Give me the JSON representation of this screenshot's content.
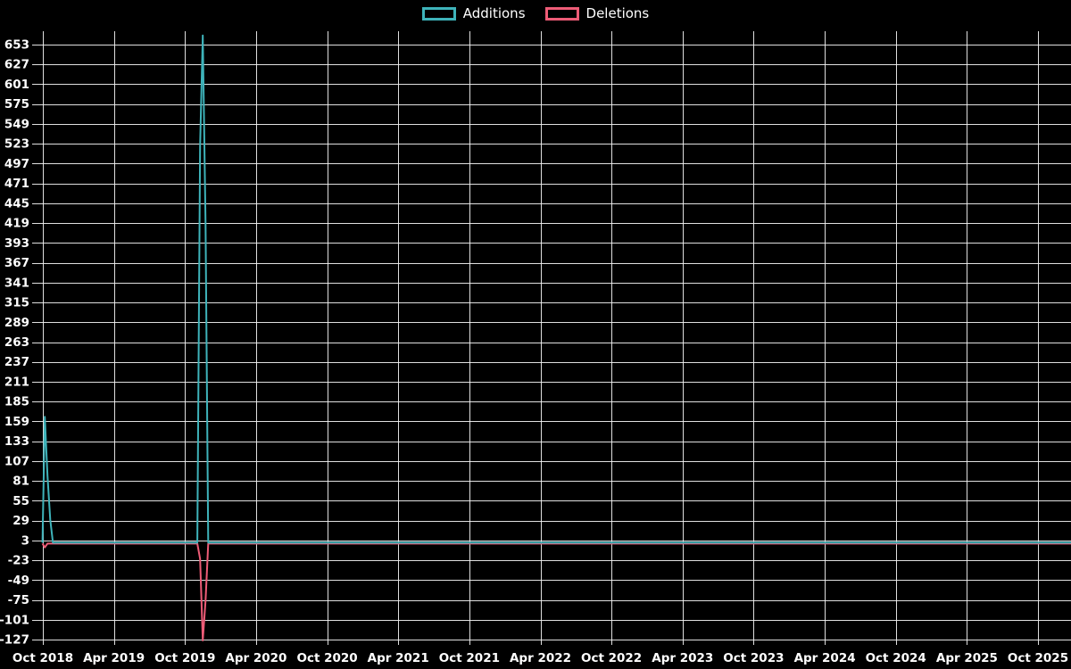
{
  "legend": {
    "additions_label": "Additions",
    "deletions_label": "Deletions"
  },
  "colors": {
    "background": "#000000",
    "grid": "#f2f2f2",
    "text": "#ffffff",
    "additions": "#3eb3ba",
    "deletions": "#ee5c77"
  },
  "chart_data": {
    "type": "line",
    "title": "",
    "legend": [
      "Additions",
      "Deletions"
    ],
    "legend_position": "top-center",
    "grid": true,
    "background": "#000000",
    "xlabel": "",
    "ylabel": "",
    "ylim": [
      -127,
      670
    ],
    "y_tick_step": 26,
    "y_ticks": [
      653,
      627,
      601,
      575,
      549,
      523,
      497,
      471,
      445,
      419,
      393,
      367,
      341,
      315,
      289,
      263,
      237,
      211,
      185,
      159,
      133,
      107,
      81,
      55,
      29,
      3,
      -23,
      -49,
      -75,
      -101,
      -127
    ],
    "x_ticks": [
      "Oct 2018",
      "Apr 2019",
      "Oct 2019",
      "Apr 2020",
      "Oct 2020",
      "Apr 2021",
      "Oct 2021",
      "Apr 2022",
      "Oct 2022",
      "Apr 2023",
      "Oct 2023",
      "Apr 2024",
      "Oct 2024",
      "Apr 2025",
      "Oct 2025"
    ],
    "x_domain": [
      "2018-10-01",
      "2025-10-01"
    ],
    "series": [
      {
        "name": "Additions",
        "color": "#3eb3ba",
        "baseline": 0,
        "points": [
          [
            "2018-09-30",
            0
          ],
          [
            "2018-10-06",
            165
          ],
          [
            "2018-10-13",
            88
          ],
          [
            "2018-10-20",
            30
          ],
          [
            "2018-10-27",
            0
          ],
          [
            "2019-11-02",
            0
          ],
          [
            "2019-11-09",
            520
          ],
          [
            "2019-11-16",
            665
          ],
          [
            "2019-11-23",
            420
          ],
          [
            "2019-11-30",
            0
          ]
        ]
      },
      {
        "name": "Deletions",
        "color": "#ee5c77",
        "baseline": 0,
        "points": [
          [
            "2018-09-30",
            0
          ],
          [
            "2018-10-06",
            -5
          ],
          [
            "2018-10-13",
            0
          ],
          [
            "2019-11-02",
            0
          ],
          [
            "2019-11-09",
            -20
          ],
          [
            "2019-11-16",
            -127
          ],
          [
            "2019-11-23",
            -75
          ],
          [
            "2019-11-30",
            0
          ]
        ]
      }
    ]
  }
}
